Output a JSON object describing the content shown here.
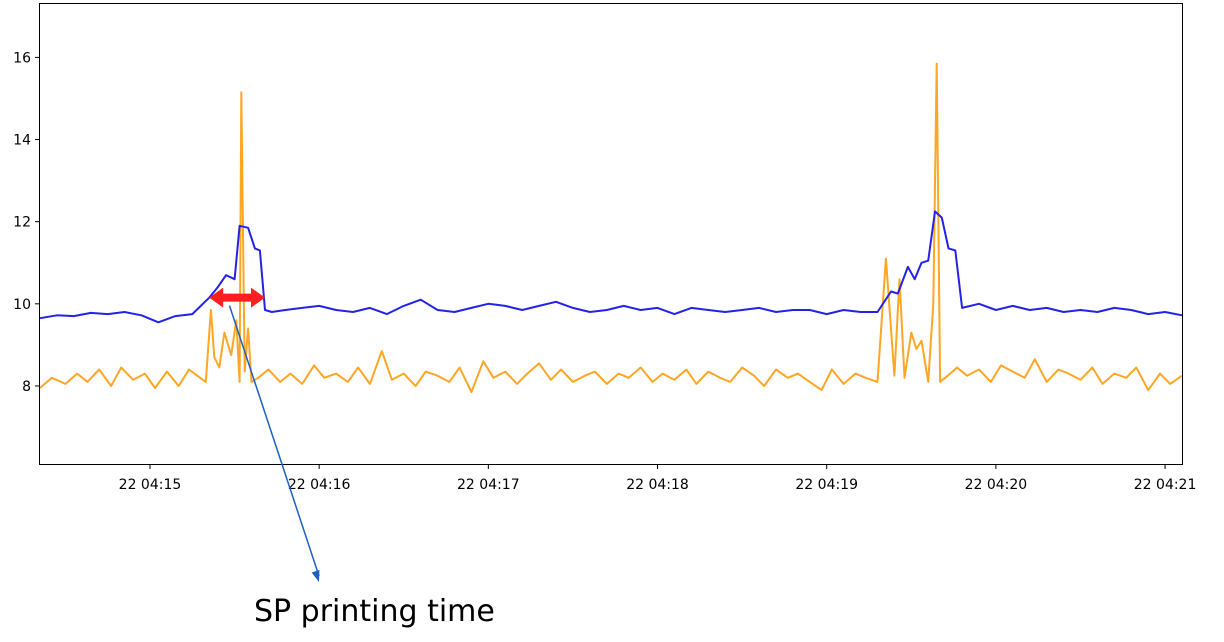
{
  "chart_data": {
    "type": "line",
    "title": "",
    "xlabel": "",
    "ylabel": "",
    "x_unit": "minutes",
    "x_start": "04:14:21",
    "x_range": [
      14.35,
      21.1
    ],
    "ylim": [
      6.1,
      17.3
    ],
    "grid": false,
    "x_ticks": [
      {
        "value": 15,
        "label": "22 04:15"
      },
      {
        "value": 16,
        "label": "22 04:16"
      },
      {
        "value": 17,
        "label": "22 04:17"
      },
      {
        "value": 18,
        "label": "22 04:18"
      },
      {
        "value": 19,
        "label": "22 04:19"
      },
      {
        "value": 20,
        "label": "22 04:20"
      },
      {
        "value": 21,
        "label": "22 04:21"
      }
    ],
    "y_ticks": [
      {
        "value": 8,
        "label": "8"
      },
      {
        "value": 10,
        "label": "10"
      },
      {
        "value": 12,
        "label": "12"
      },
      {
        "value": 14,
        "label": "14"
      },
      {
        "value": 16,
        "label": "16"
      }
    ],
    "series": [
      {
        "color": "#2323e6",
        "x": [
          14.35,
          14.45,
          14.55,
          14.65,
          14.75,
          14.85,
          14.95,
          15.05,
          15.15,
          15.25,
          15.35,
          15.4,
          15.45,
          15.5,
          15.53,
          15.58,
          15.62,
          15.65,
          15.68,
          15.72,
          15.8,
          15.9,
          16.0,
          16.1,
          16.2,
          16.3,
          16.4,
          16.5,
          16.6,
          16.7,
          16.8,
          16.9,
          17.0,
          17.1,
          17.2,
          17.3,
          17.4,
          17.5,
          17.6,
          17.7,
          17.8,
          17.9,
          18.0,
          18.1,
          18.2,
          18.3,
          18.4,
          18.5,
          18.6,
          18.7,
          18.8,
          18.9,
          19.0,
          19.1,
          19.2,
          19.3,
          19.38,
          19.42,
          19.48,
          19.52,
          19.56,
          19.6,
          19.64,
          19.68,
          19.72,
          19.76,
          19.8,
          19.85,
          19.9,
          20.0,
          20.1,
          20.2,
          20.3,
          20.4,
          20.5,
          20.6,
          20.7,
          20.8,
          20.9,
          21.0,
          21.1
        ],
        "y": [
          9.65,
          9.72,
          9.7,
          9.78,
          9.75,
          9.8,
          9.72,
          9.55,
          9.7,
          9.75,
          10.15,
          10.4,
          10.7,
          10.6,
          11.9,
          11.85,
          11.35,
          11.3,
          9.85,
          9.8,
          9.85,
          9.9,
          9.95,
          9.85,
          9.8,
          9.9,
          9.75,
          9.95,
          10.1,
          9.85,
          9.8,
          9.9,
          10.0,
          9.95,
          9.85,
          9.95,
          10.05,
          9.9,
          9.8,
          9.85,
          9.95,
          9.85,
          9.9,
          9.75,
          9.9,
          9.85,
          9.8,
          9.85,
          9.9,
          9.8,
          9.85,
          9.85,
          9.75,
          9.85,
          9.8,
          9.8,
          10.3,
          10.25,
          10.9,
          10.6,
          11.0,
          11.05,
          12.25,
          12.1,
          11.35,
          11.3,
          9.9,
          9.95,
          10.0,
          9.85,
          9.95,
          9.85,
          9.9,
          9.8,
          9.85,
          9.8,
          9.9,
          9.85,
          9.75,
          9.8,
          9.72
        ]
      },
      {
        "color": "#ffa624",
        "x": [
          14.35,
          14.42,
          14.5,
          14.57,
          14.63,
          14.7,
          14.77,
          14.83,
          14.9,
          14.97,
          15.03,
          15.1,
          15.17,
          15.23,
          15.28,
          15.33,
          15.36,
          15.38,
          15.41,
          15.44,
          15.48,
          15.51,
          15.53,
          15.54,
          15.56,
          15.58,
          15.6,
          15.64,
          15.7,
          15.77,
          15.83,
          15.9,
          15.97,
          16.03,
          16.1,
          16.17,
          16.23,
          16.3,
          16.37,
          16.43,
          16.5,
          16.57,
          16.63,
          16.7,
          16.77,
          16.83,
          16.9,
          16.97,
          17.03,
          17.1,
          17.17,
          17.23,
          17.3,
          17.37,
          17.43,
          17.5,
          17.57,
          17.63,
          17.7,
          17.77,
          17.83,
          17.9,
          17.97,
          18.03,
          18.1,
          18.17,
          18.23,
          18.3,
          18.37,
          18.43,
          18.5,
          18.57,
          18.63,
          18.7,
          18.77,
          18.83,
          18.9,
          18.97,
          19.03,
          19.1,
          19.17,
          19.23,
          19.3,
          19.35,
          19.4,
          19.43,
          19.46,
          19.5,
          19.53,
          19.56,
          19.6,
          19.63,
          19.65,
          19.67,
          19.7,
          19.73,
          19.77,
          19.83,
          19.9,
          19.97,
          20.03,
          20.1,
          20.17,
          20.23,
          20.3,
          20.37,
          20.43,
          20.5,
          20.57,
          20.63,
          20.7,
          20.77,
          20.83,
          20.9,
          20.97,
          21.03,
          21.1
        ],
        "y": [
          7.95,
          8.2,
          8.05,
          8.3,
          8.1,
          8.4,
          8.0,
          8.45,
          8.15,
          8.3,
          7.95,
          8.35,
          8.0,
          8.4,
          8.25,
          8.1,
          9.85,
          8.7,
          8.45,
          9.3,
          8.75,
          9.6,
          8.1,
          15.15,
          8.35,
          9.4,
          8.1,
          8.2,
          8.4,
          8.1,
          8.3,
          8.05,
          8.5,
          8.2,
          8.3,
          8.1,
          8.45,
          8.05,
          8.85,
          8.15,
          8.3,
          8.0,
          8.35,
          8.25,
          8.1,
          8.45,
          7.85,
          8.6,
          8.2,
          8.35,
          8.05,
          8.3,
          8.55,
          8.15,
          8.4,
          8.1,
          8.25,
          8.35,
          8.05,
          8.3,
          8.2,
          8.45,
          8.1,
          8.3,
          8.15,
          8.4,
          8.05,
          8.35,
          8.2,
          8.1,
          8.45,
          8.25,
          8.0,
          8.4,
          8.2,
          8.3,
          8.1,
          7.9,
          8.4,
          8.05,
          8.3,
          8.2,
          8.1,
          11.1,
          8.25,
          10.6,
          8.2,
          9.3,
          8.9,
          9.1,
          8.1,
          10.0,
          15.85,
          8.1,
          8.2,
          8.3,
          8.45,
          8.25,
          8.4,
          8.1,
          8.5,
          8.35,
          8.2,
          8.65,
          8.1,
          8.4,
          8.3,
          8.15,
          8.45,
          8.05,
          8.3,
          8.2,
          8.45,
          7.9,
          8.3,
          8.05,
          8.25
        ]
      }
    ],
    "annotation": {
      "text": "SP printing time",
      "range_start": 15.35,
      "range_end": 15.68,
      "range_y": 10.15,
      "range_color": "#ff1f1f",
      "arrow_color": "#1f5fbf"
    }
  }
}
